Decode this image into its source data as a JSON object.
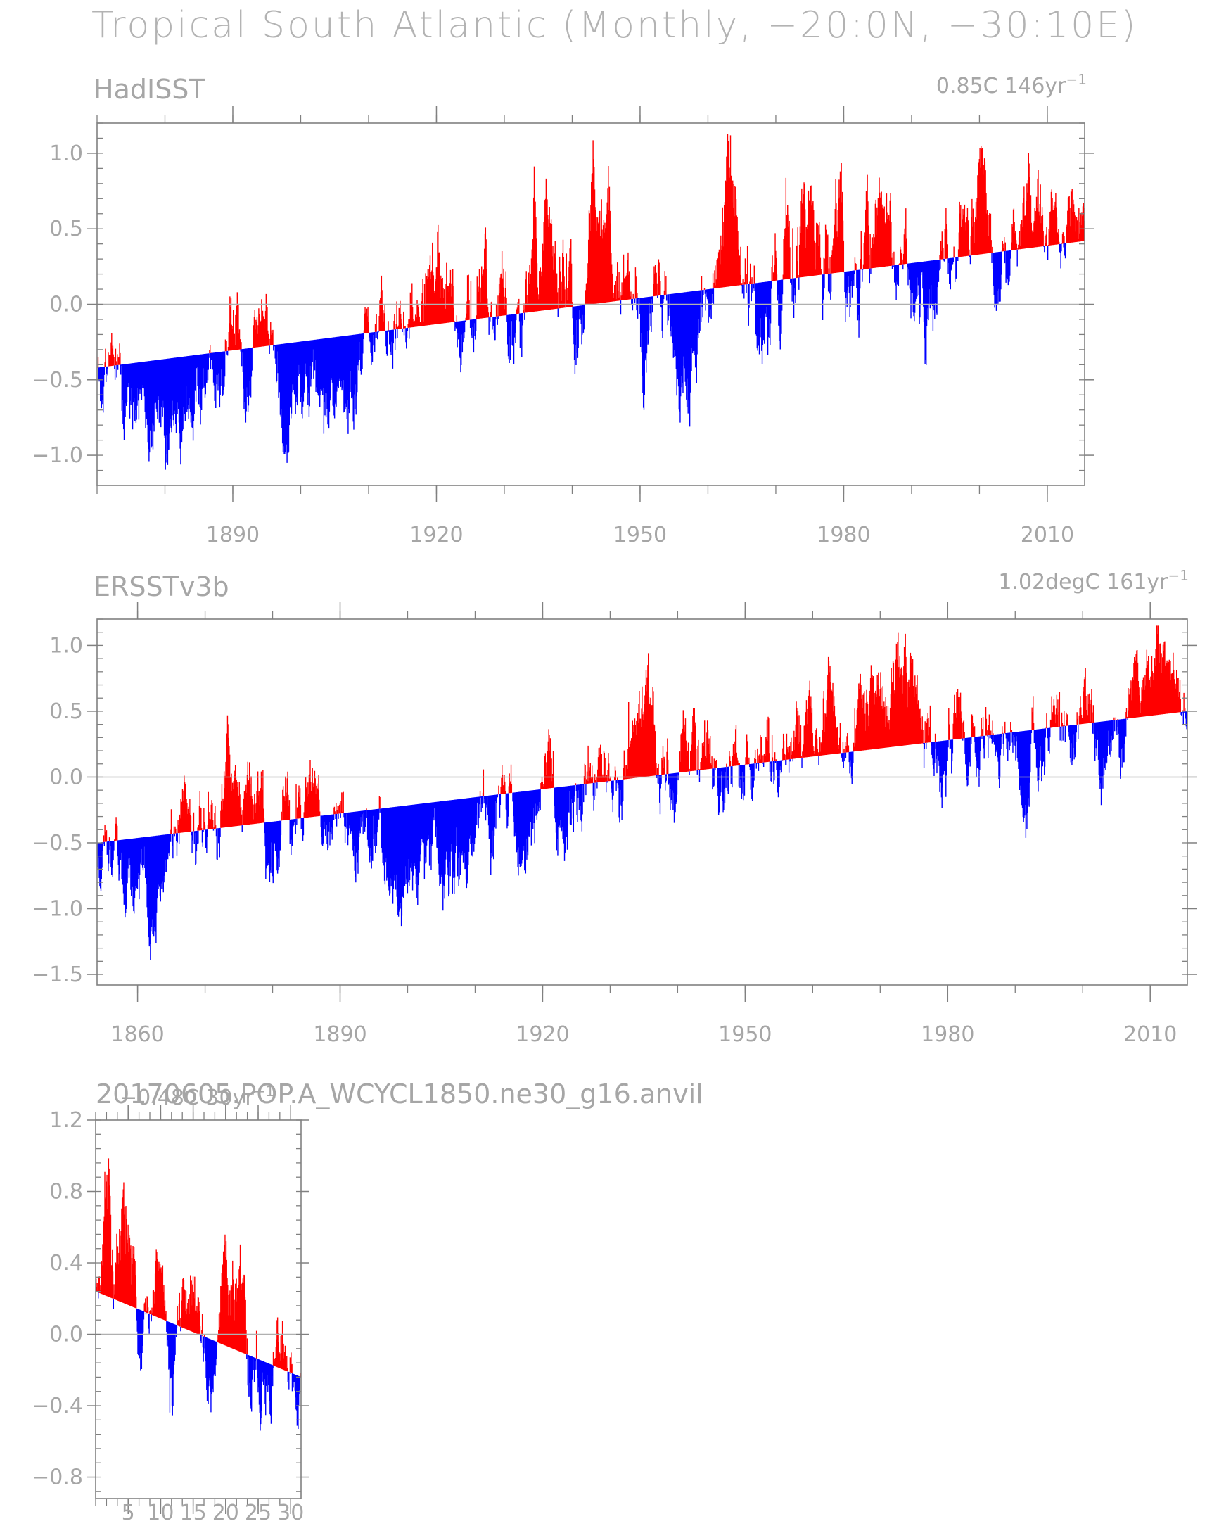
{
  "page": {
    "title": "Tropical South Atlantic (Monthly, −20:0N, −30:10E)"
  },
  "colors": {
    "positive": "#ff0000",
    "negative": "#0000ff",
    "axis": "#808080",
    "text": "#a6a6a6"
  },
  "chart_data": [
    {
      "type": "area",
      "title": "HadISST",
      "trend_label": "0.85C  146yr",
      "trend_superscript": "−1",
      "x_range": [
        1870,
        2015.5
      ],
      "ylim": [
        -1.2,
        1.2
      ],
      "xticks": [
        "1890",
        "1920",
        "1950",
        "1980",
        "2010"
      ],
      "xtick_values": [
        1890,
        1920,
        1950,
        1980,
        2010
      ],
      "yticks": [
        "1.0",
        "0.5",
        "0.0",
        "−0.5",
        "−1.0"
      ],
      "ytick_values": [
        1.0,
        0.5,
        0.0,
        -0.5,
        -1.0
      ],
      "trend_line": {
        "start": -0.42,
        "end": 0.42
      },
      "series_seed": 11,
      "anomaly_envelope": [
        [
          1870,
          0.45
        ],
        [
          1875,
          0.55
        ],
        [
          1880,
          0.5
        ],
        [
          1885,
          0.45
        ],
        [
          1890,
          0.5
        ],
        [
          1900,
          0.45
        ],
        [
          1905,
          0.55
        ],
        [
          1910,
          0.55
        ],
        [
          1920,
          0.6
        ],
        [
          1925,
          0.65
        ],
        [
          1935,
          0.65
        ],
        [
          1945,
          0.7
        ],
        [
          1955,
          0.55
        ],
        [
          1965,
          0.7
        ],
        [
          1975,
          0.75
        ],
        [
          1985,
          0.6
        ],
        [
          1995,
          0.6
        ],
        [
          2005,
          0.55
        ],
        [
          2015,
          0.4
        ]
      ],
      "cold_events": [
        [
          1905,
          -0.45,
          6
        ],
        [
          1957,
          -0.35,
          2
        ],
        [
          1993,
          -0.3,
          2
        ],
        [
          1881,
          -0.3,
          3
        ]
      ],
      "warm_events": [
        [
          1944,
          0.55,
          1.5
        ],
        [
          1973,
          0.45,
          2
        ],
        [
          1997,
          0.5,
          2
        ],
        [
          1963,
          0.4,
          2
        ]
      ]
    },
    {
      "type": "area",
      "title": "ERSSTv3b",
      "trend_label": "1.02degC  161yr",
      "trend_superscript": "−1",
      "x_range": [
        1854,
        2015.5
      ],
      "ylim": [
        -1.58,
        1.2
      ],
      "xticks": [
        "1860",
        "1890",
        "1920",
        "1950",
        "1980",
        "2010"
      ],
      "xtick_values": [
        1860,
        1890,
        1920,
        1950,
        1980,
        2010
      ],
      "yticks": [
        "1.0",
        "0.5",
        "0.0",
        "−0.5",
        "−1.0",
        "−1.5"
      ],
      "ytick_values": [
        1.0,
        0.5,
        0.0,
        -0.5,
        -1.0,
        -1.5
      ],
      "trend_line": {
        "start": -0.5,
        "end": 0.5
      },
      "series_seed": 23,
      "anomaly_envelope": [
        [
          1854,
          0.5
        ],
        [
          1865,
          0.55
        ],
        [
          1875,
          0.6
        ],
        [
          1885,
          0.55
        ],
        [
          1895,
          0.5
        ],
        [
          1905,
          0.55
        ],
        [
          1915,
          0.55
        ],
        [
          1925,
          0.6
        ],
        [
          1935,
          0.6
        ],
        [
          1945,
          0.6
        ],
        [
          1955,
          0.55
        ],
        [
          1965,
          0.55
        ],
        [
          1975,
          0.65
        ],
        [
          1985,
          0.55
        ],
        [
          1995,
          0.55
        ],
        [
          2005,
          0.55
        ],
        [
          2015,
          0.45
        ]
      ],
      "cold_events": [
        [
          1905,
          -0.55,
          6
        ],
        [
          1945,
          -0.35,
          2
        ],
        [
          1958,
          -0.3,
          2
        ],
        [
          1861,
          -0.25,
          3
        ]
      ],
      "warm_events": [
        [
          1874,
          0.35,
          2
        ],
        [
          1934,
          0.35,
          2
        ],
        [
          1973,
          0.55,
          2
        ],
        [
          2010,
          0.3,
          2
        ]
      ]
    },
    {
      "type": "area",
      "title": "20170605.POP.A_WCYCL1850.ne30_g16.anvil",
      "trend_label": "−0.48C  30yr",
      "trend_superscript": "−1",
      "x_range": [
        0,
        31.6
      ],
      "ylim": [
        -0.92,
        1.2
      ],
      "xticks": [
        "5",
        "10",
        "15",
        "20",
        "25",
        "30"
      ],
      "xtick_values": [
        5,
        10,
        15,
        20,
        25,
        30
      ],
      "yticks": [
        "1.2",
        "0.8",
        "0.4",
        "0.0",
        "−0.4",
        "−0.8"
      ],
      "ytick_values": [
        1.2,
        0.8,
        0.4,
        0.0,
        -0.4,
        -0.8
      ],
      "trend_line": {
        "start": 0.24,
        "end": -0.24
      },
      "series_seed": 37,
      "anomaly_envelope": [
        [
          0,
          0.35
        ],
        [
          3,
          0.8
        ],
        [
          6,
          0.35
        ],
        [
          10,
          0.4
        ],
        [
          14,
          0.35
        ],
        [
          18,
          0.35
        ],
        [
          22,
          0.45
        ],
        [
          26,
          0.4
        ],
        [
          31.6,
          0.4
        ]
      ],
      "cold_events": [
        [
          11.5,
          -0.5,
          0.6
        ],
        [
          23.5,
          -0.45,
          0.6
        ],
        [
          6.5,
          -0.3,
          0.6
        ],
        [
          17.5,
          -0.3,
          0.8
        ]
      ],
      "warm_events": [
        [
          3.5,
          0.55,
          1.2
        ],
        [
          11,
          0.2,
          0.6
        ],
        [
          20.5,
          0.15,
          1.0
        ],
        [
          30,
          0.15,
          0.8
        ]
      ]
    }
  ]
}
